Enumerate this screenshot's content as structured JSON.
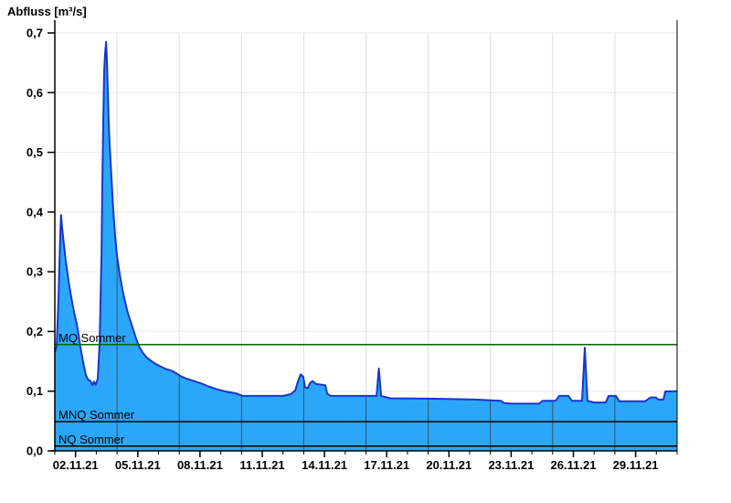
{
  "title": "Abfluss [m³/s]",
  "chart_data": {
    "type": "area",
    "title": "Abfluss [m³/s]",
    "ylabel": "Abfluss [m³/s]",
    "xlabel": "",
    "ylim": [
      0,
      0.7
    ],
    "x_range_days": [
      1,
      31
    ],
    "x_period": "01.11.21 - 01.12.21",
    "grid": "on",
    "y_ticks": [
      {
        "value": 0.0,
        "label": "0,0"
      },
      {
        "value": 0.1,
        "label": "0,1"
      },
      {
        "value": 0.2,
        "label": "0,2"
      },
      {
        "value": 0.3,
        "label": "0,3"
      },
      {
        "value": 0.4,
        "label": "0,4"
      },
      {
        "value": 0.5,
        "label": "0,5"
      },
      {
        "value": 0.6,
        "label": "0,6"
      },
      {
        "value": 0.7,
        "label": "0,7"
      }
    ],
    "x_ticks": [
      {
        "day": 2,
        "label": "02.11.21"
      },
      {
        "day": 5,
        "label": "05.11.21"
      },
      {
        "day": 8,
        "label": "08.11.21"
      },
      {
        "day": 11,
        "label": "11.11.21"
      },
      {
        "day": 14,
        "label": "14.11.21"
      },
      {
        "day": 17,
        "label": "17.11.21"
      },
      {
        "day": 20,
        "label": "20.11.21"
      },
      {
        "day": 23,
        "label": "23.11.21"
      },
      {
        "day": 26,
        "label": "26.11.21"
      },
      {
        "day": 29,
        "label": "29.11.21"
      }
    ],
    "x_minor_tick_step_days": 1,
    "vertical_grid_days": [
      4,
      7,
      10,
      13,
      16,
      19,
      22,
      25,
      28
    ],
    "reference_lines": [
      {
        "label": "MQ Sommer",
        "value": 0.178,
        "color": "#006600"
      },
      {
        "label": "MNQ Sommer",
        "value": 0.049,
        "color": "#000000"
      },
      {
        "label": "NQ Sommer",
        "value": 0.008,
        "color": "#000000"
      }
    ],
    "series": [
      {
        "name": "Abfluss",
        "points": [
          [
            1.0,
            0.165
          ],
          [
            1.09,
            0.175
          ],
          [
            1.18,
            0.26
          ],
          [
            1.26,
            0.36
          ],
          [
            1.3,
            0.395
          ],
          [
            1.35,
            0.375
          ],
          [
            1.44,
            0.345
          ],
          [
            1.53,
            0.318
          ],
          [
            1.66,
            0.285
          ],
          [
            1.79,
            0.258
          ],
          [
            1.93,
            0.232
          ],
          [
            2.06,
            0.212
          ],
          [
            2.15,
            0.193
          ],
          [
            2.23,
            0.175
          ],
          [
            2.32,
            0.157
          ],
          [
            2.41,
            0.141
          ],
          [
            2.5,
            0.127
          ],
          [
            2.59,
            0.12
          ],
          [
            2.72,
            0.117
          ],
          [
            2.81,
            0.11
          ],
          [
            2.89,
            0.116
          ],
          [
            2.98,
            0.111
          ],
          [
            3.07,
            0.121
          ],
          [
            3.16,
            0.18
          ],
          [
            3.25,
            0.33
          ],
          [
            3.29,
            0.45
          ],
          [
            3.34,
            0.56
          ],
          [
            3.38,
            0.635
          ],
          [
            3.42,
            0.663
          ],
          [
            3.47,
            0.685
          ],
          [
            3.51,
            0.655
          ],
          [
            3.56,
            0.6
          ],
          [
            3.6,
            0.55
          ],
          [
            3.64,
            0.515
          ],
          [
            3.73,
            0.458
          ],
          [
            3.82,
            0.402
          ],
          [
            3.91,
            0.358
          ],
          [
            4.0,
            0.326
          ],
          [
            4.13,
            0.295
          ],
          [
            4.26,
            0.27
          ],
          [
            4.39,
            0.249
          ],
          [
            4.52,
            0.231
          ],
          [
            4.66,
            0.216
          ],
          [
            4.79,
            0.202
          ],
          [
            4.92,
            0.188
          ],
          [
            5.05,
            0.176
          ],
          [
            5.23,
            0.165
          ],
          [
            5.41,
            0.157
          ],
          [
            5.63,
            0.151
          ],
          [
            5.85,
            0.146
          ],
          [
            6.11,
            0.141
          ],
          [
            6.37,
            0.137
          ],
          [
            6.64,
            0.134
          ],
          [
            6.86,
            0.13
          ],
          [
            7.08,
            0.125
          ],
          [
            7.34,
            0.121
          ],
          [
            7.7,
            0.117
          ],
          [
            8.05,
            0.113
          ],
          [
            8.4,
            0.108
          ],
          [
            8.84,
            0.103
          ],
          [
            9.28,
            0.099
          ],
          [
            9.72,
            0.0965
          ],
          [
            10.07,
            0.092
          ],
          [
            12.01,
            0.092
          ],
          [
            12.37,
            0.095
          ],
          [
            12.59,
            0.101
          ],
          [
            12.72,
            0.116
          ],
          [
            12.85,
            0.128
          ],
          [
            12.98,
            0.124
          ],
          [
            13.07,
            0.106
          ],
          [
            13.2,
            0.105
          ],
          [
            13.29,
            0.113
          ],
          [
            13.42,
            0.117
          ],
          [
            13.6,
            0.112
          ],
          [
            14.04,
            0.11
          ],
          [
            14.13,
            0.096
          ],
          [
            14.3,
            0.092
          ],
          [
            16.51,
            0.092
          ],
          [
            16.62,
            0.138
          ],
          [
            16.73,
            0.092
          ],
          [
            17.17,
            0.088
          ],
          [
            19.06,
            0.0875
          ],
          [
            19.94,
            0.087
          ],
          [
            21.26,
            0.086
          ],
          [
            22.5,
            0.084
          ],
          [
            22.67,
            0.08
          ],
          [
            23.03,
            0.079
          ],
          [
            24.35,
            0.079
          ],
          [
            24.52,
            0.084
          ],
          [
            25.14,
            0.084
          ],
          [
            25.32,
            0.092
          ],
          [
            25.76,
            0.092
          ],
          [
            25.93,
            0.084
          ],
          [
            26.42,
            0.084
          ],
          [
            26.55,
            0.173
          ],
          [
            26.68,
            0.084
          ],
          [
            26.99,
            0.081
          ],
          [
            27.56,
            0.081
          ],
          [
            27.7,
            0.092
          ],
          [
            28.05,
            0.092
          ],
          [
            28.22,
            0.083
          ],
          [
            29.46,
            0.083
          ],
          [
            29.72,
            0.0895
          ],
          [
            29.99,
            0.0895
          ],
          [
            30.08,
            0.086
          ],
          [
            30.34,
            0.086
          ],
          [
            30.43,
            0.0995
          ],
          [
            31.0,
            0.1
          ]
        ]
      }
    ],
    "colors": {
      "area_fill": "#2aa7f8",
      "line": "#1a35cc",
      "h_grid": "#e9e9e9",
      "v_grid_light": "#dedede",
      "v_grid_on_area": "#3d3d3d",
      "axis": "#000000",
      "text": "#000000"
    }
  }
}
